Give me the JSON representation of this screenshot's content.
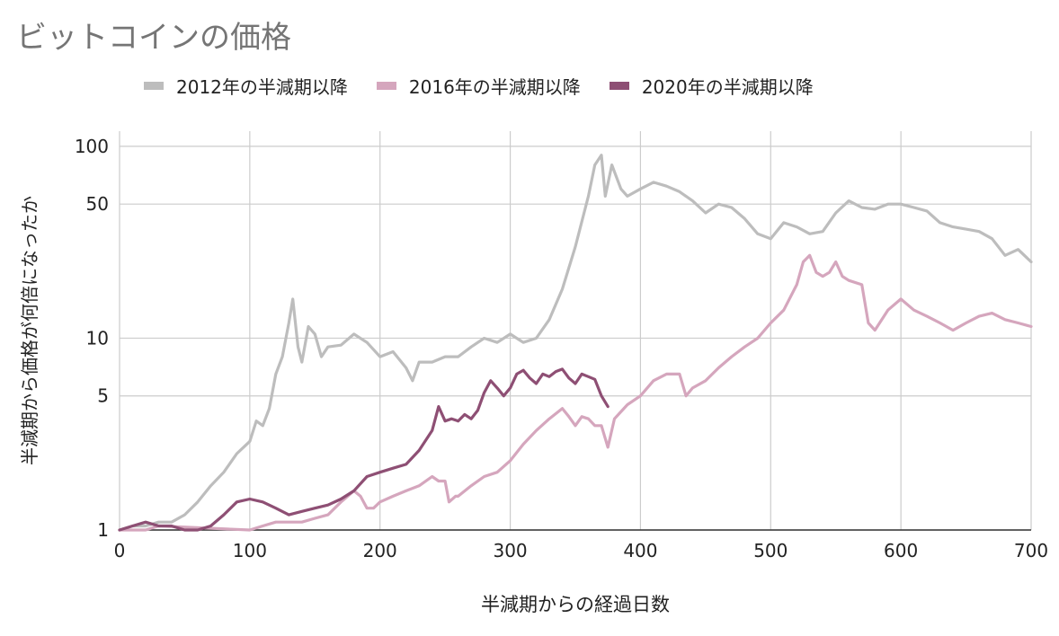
{
  "chart_data": {
    "type": "line",
    "title": "ビットコインの価格",
    "xlabel": "半減期からの経過日数",
    "ylabel": "半減期から価格が何倍になったか",
    "x_scale": "linear",
    "y_scale": "log",
    "xlim": [
      0,
      700
    ],
    "ylim": [
      1,
      120
    ],
    "x_ticks": [
      0,
      100,
      200,
      300,
      400,
      500,
      600,
      700
    ],
    "y_ticks": [
      1,
      5,
      10,
      50,
      100
    ],
    "grid": true,
    "legend_position": "top",
    "series": [
      {
        "name": "2012年の半減期以降",
        "color": "#bdbdbd",
        "points": [
          [
            0,
            1.0
          ],
          [
            10,
            1.05
          ],
          [
            20,
            1.05
          ],
          [
            30,
            1.1
          ],
          [
            40,
            1.1
          ],
          [
            50,
            1.2
          ],
          [
            60,
            1.4
          ],
          [
            70,
            1.7
          ],
          [
            80,
            2.0
          ],
          [
            90,
            2.5
          ],
          [
            100,
            2.9
          ],
          [
            105,
            3.7
          ],
          [
            110,
            3.5
          ],
          [
            115,
            4.3
          ],
          [
            120,
            6.5
          ],
          [
            125,
            8.0
          ],
          [
            130,
            12.0
          ],
          [
            133,
            16.0
          ],
          [
            137,
            9.0
          ],
          [
            140,
            7.5
          ],
          [
            145,
            11.5
          ],
          [
            150,
            10.5
          ],
          [
            155,
            8.0
          ],
          [
            160,
            9.0
          ],
          [
            170,
            9.2
          ],
          [
            180,
            10.5
          ],
          [
            190,
            9.5
          ],
          [
            200,
            8.0
          ],
          [
            210,
            8.5
          ],
          [
            220,
            7.0
          ],
          [
            225,
            6.0
          ],
          [
            230,
            7.5
          ],
          [
            240,
            7.5
          ],
          [
            250,
            8.0
          ],
          [
            260,
            8.0
          ],
          [
            270,
            9.0
          ],
          [
            280,
            10.0
          ],
          [
            290,
            9.5
          ],
          [
            300,
            10.5
          ],
          [
            310,
            9.5
          ],
          [
            320,
            10.0
          ],
          [
            330,
            12.5
          ],
          [
            340,
            18.0
          ],
          [
            350,
            30.0
          ],
          [
            360,
            55.0
          ],
          [
            365,
            80.0
          ],
          [
            370,
            90.0
          ],
          [
            373,
            55.0
          ],
          [
            378,
            80.0
          ],
          [
            385,
            60.0
          ],
          [
            390,
            55.0
          ],
          [
            400,
            60.0
          ],
          [
            410,
            65.0
          ],
          [
            420,
            62.0
          ],
          [
            430,
            58.0
          ],
          [
            440,
            52.0
          ],
          [
            450,
            45.0
          ],
          [
            460,
            50.0
          ],
          [
            470,
            48.0
          ],
          [
            480,
            42.0
          ],
          [
            490,
            35.0
          ],
          [
            500,
            33.0
          ],
          [
            510,
            40.0
          ],
          [
            520,
            38.0
          ],
          [
            530,
            35.0
          ],
          [
            540,
            36.0
          ],
          [
            550,
            45.0
          ],
          [
            560,
            52.0
          ],
          [
            570,
            48.0
          ],
          [
            580,
            47.0
          ],
          [
            590,
            50.0
          ],
          [
            600,
            50.0
          ],
          [
            610,
            48.0
          ],
          [
            620,
            46.0
          ],
          [
            630,
            40.0
          ],
          [
            640,
            38.0
          ],
          [
            650,
            37.0
          ],
          [
            660,
            36.0
          ],
          [
            670,
            33.0
          ],
          [
            680,
            27.0
          ],
          [
            690,
            29.0
          ],
          [
            700,
            25.0
          ]
        ]
      },
      {
        "name": "2016年の半減期以降",
        "color": "#d5a6bd",
        "points": [
          [
            0,
            1.0
          ],
          [
            10,
            0.98
          ],
          [
            20,
            1.0
          ],
          [
            30,
            1.05
          ],
          [
            100,
            1.0
          ],
          [
            110,
            1.05
          ],
          [
            120,
            1.1
          ],
          [
            130,
            1.1
          ],
          [
            140,
            1.1
          ],
          [
            150,
            1.15
          ],
          [
            160,
            1.2
          ],
          [
            170,
            1.4
          ],
          [
            180,
            1.6
          ],
          [
            185,
            1.5
          ],
          [
            190,
            1.3
          ],
          [
            195,
            1.3
          ],
          [
            200,
            1.4
          ],
          [
            210,
            1.5
          ],
          [
            220,
            1.6
          ],
          [
            230,
            1.7
          ],
          [
            240,
            1.9
          ],
          [
            245,
            1.8
          ],
          [
            250,
            1.8
          ],
          [
            253,
            1.4
          ],
          [
            258,
            1.5
          ],
          [
            260,
            1.5
          ],
          [
            270,
            1.7
          ],
          [
            280,
            1.9
          ],
          [
            290,
            2.0
          ],
          [
            300,
            2.3
          ],
          [
            310,
            2.8
          ],
          [
            320,
            3.3
          ],
          [
            330,
            3.8
          ],
          [
            340,
            4.3
          ],
          [
            345,
            3.9
          ],
          [
            350,
            3.5
          ],
          [
            355,
            3.9
          ],
          [
            360,
            3.8
          ],
          [
            365,
            3.5
          ],
          [
            370,
            3.5
          ],
          [
            375,
            2.7
          ],
          [
            380,
            3.8
          ],
          [
            390,
            4.5
          ],
          [
            400,
            5.0
          ],
          [
            410,
            6.0
          ],
          [
            420,
            6.5
          ],
          [
            430,
            6.5
          ],
          [
            435,
            5.0
          ],
          [
            440,
            5.5
          ],
          [
            450,
            6.0
          ],
          [
            460,
            7.0
          ],
          [
            470,
            8.0
          ],
          [
            480,
            9.0
          ],
          [
            490,
            10.0
          ],
          [
            500,
            12.0
          ],
          [
            510,
            14.0
          ],
          [
            520,
            19.0
          ],
          [
            525,
            25.0
          ],
          [
            530,
            27.0
          ],
          [
            535,
            22.0
          ],
          [
            540,
            21.0
          ],
          [
            545,
            22.0
          ],
          [
            550,
            25.0
          ],
          [
            555,
            21.0
          ],
          [
            560,
            20.0
          ],
          [
            570,
            19.0
          ],
          [
            575,
            12.0
          ],
          [
            580,
            11.0
          ],
          [
            590,
            14.0
          ],
          [
            600,
            16.0
          ],
          [
            610,
            14.0
          ],
          [
            620,
            13.0
          ],
          [
            630,
            12.0
          ],
          [
            640,
            11.0
          ],
          [
            650,
            12.0
          ],
          [
            660,
            13.0
          ],
          [
            670,
            13.5
          ],
          [
            680,
            12.5
          ],
          [
            690,
            12.0
          ],
          [
            700,
            11.5
          ]
        ]
      },
      {
        "name": "2020年の半減期以降",
        "color": "#8e4f74",
        "points": [
          [
            0,
            1.0
          ],
          [
            10,
            1.05
          ],
          [
            20,
            1.1
          ],
          [
            30,
            1.05
          ],
          [
            40,
            1.05
          ],
          [
            50,
            1.0
          ],
          [
            60,
            1.0
          ],
          [
            70,
            1.05
          ],
          [
            80,
            1.2
          ],
          [
            90,
            1.4
          ],
          [
            100,
            1.45
          ],
          [
            110,
            1.4
          ],
          [
            120,
            1.3
          ],
          [
            130,
            1.2
          ],
          [
            140,
            1.25
          ],
          [
            150,
            1.3
          ],
          [
            160,
            1.35
          ],
          [
            170,
            1.45
          ],
          [
            180,
            1.6
          ],
          [
            190,
            1.9
          ],
          [
            200,
            2.0
          ],
          [
            210,
            2.1
          ],
          [
            220,
            2.2
          ],
          [
            230,
            2.6
          ],
          [
            240,
            3.3
          ],
          [
            245,
            4.4
          ],
          [
            250,
            3.7
          ],
          [
            255,
            3.8
          ],
          [
            260,
            3.7
          ],
          [
            265,
            4.0
          ],
          [
            270,
            3.8
          ],
          [
            275,
            4.2
          ],
          [
            280,
            5.2
          ],
          [
            285,
            6.0
          ],
          [
            290,
            5.5
          ],
          [
            295,
            5.0
          ],
          [
            300,
            5.5
          ],
          [
            305,
            6.5
          ],
          [
            310,
            6.8
          ],
          [
            315,
            6.2
          ],
          [
            320,
            5.8
          ],
          [
            325,
            6.5
          ],
          [
            330,
            6.3
          ],
          [
            335,
            6.7
          ],
          [
            340,
            6.9
          ],
          [
            345,
            6.2
          ],
          [
            350,
            5.8
          ],
          [
            355,
            6.5
          ],
          [
            360,
            6.3
          ],
          [
            365,
            6.1
          ],
          [
            370,
            5.0
          ],
          [
            375,
            4.4
          ]
        ]
      }
    ]
  }
}
